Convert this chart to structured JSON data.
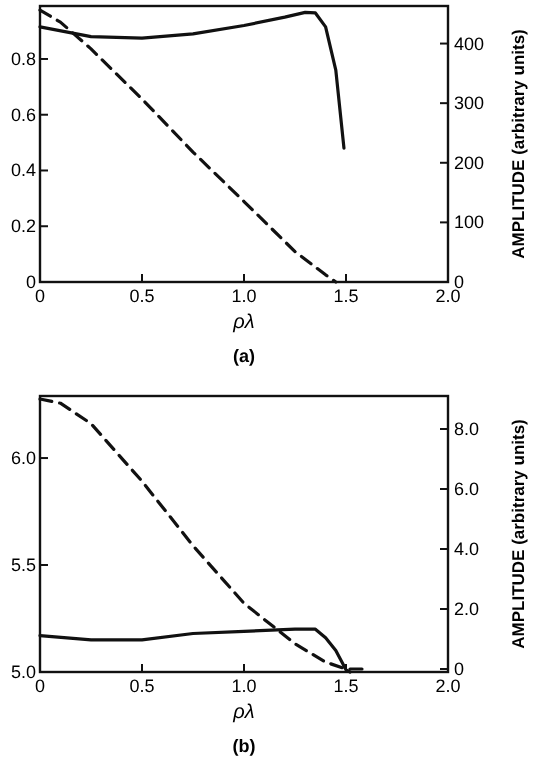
{
  "chart_data": [
    {
      "type": "line",
      "xlabel": "ρλ",
      "y2label": "AMPLITUDE (arbitrary units)",
      "annotations": [
        "(a)"
      ],
      "xlim": [
        0,
        2.0
      ],
      "xticks": [
        0,
        {
          "value": 0.5,
          "label": "0.5"
        },
        {
          "value": 1,
          "label": "1.0"
        },
        {
          "value": 1.5,
          "label": "1.5"
        },
        {
          "value": 2,
          "label": "2.0"
        }
      ],
      "ylim": [
        0,
        0.99
      ],
      "yticks": [
        0,
        {
          "value": 0.2,
          "label": "0.2"
        },
        {
          "value": 0.4,
          "label": "0.4"
        },
        {
          "value": 0.6,
          "label": "0.6"
        },
        {
          "value": 0.8,
          "label": "0.8"
        }
      ],
      "y2lim": [
        0,
        463
      ],
      "y2ticks": [
        0,
        100,
        200,
        300,
        400
      ],
      "series": [
        {
          "color": "#111111",
          "line_style": "solid",
          "x": [
            0,
            0.25,
            0.5,
            0.75,
            1.0,
            1.2,
            1.3,
            1.35,
            1.4,
            1.45,
            1.49
          ],
          "values": [
            0.915,
            0.88,
            0.875,
            0.89,
            0.92,
            0.95,
            0.967,
            0.965,
            0.915,
            0.76,
            0.48
          ]
        },
        {
          "color": "#111111",
          "line_style": "dashed",
          "axis": "y2",
          "x": [
            0,
            0.1,
            0.25,
            0.5,
            0.75,
            1.0,
            1.25,
            1.4,
            1.45
          ],
          "values": [
            456,
            436,
            391,
            307,
            218,
            135,
            51,
            12,
            0
          ]
        }
      ]
    },
    {
      "type": "line",
      "xlabel": "ρλ",
      "y2label": "AMPLITUDE (arbitrary units)",
      "annotations": [
        "(b)"
      ],
      "xlim": [
        0,
        2.0
      ],
      "xticks": [
        0,
        {
          "value": 0.5,
          "label": "0.5"
        },
        {
          "value": 1,
          "label": "1.0"
        },
        {
          "value": 1.5,
          "label": "1.5"
        },
        {
          "value": 2,
          "label": "2.0"
        }
      ],
      "ylim": [
        5.0,
        6.29
      ],
      "yticks": [
        {
          "value": 5,
          "label": "5.0"
        },
        5.5,
        {
          "value": 6,
          "label": "6.0"
        }
      ],
      "y2lim": [
        -0.1,
        9.1
      ],
      "y2ticks": [
        0,
        {
          "value": 2,
          "label": "2.0"
        },
        {
          "value": 4,
          "label": "4.0"
        },
        {
          "value": 6,
          "label": "6.0"
        },
        {
          "value": 8,
          "label": "8.0"
        }
      ],
      "series": [
        {
          "color": "#111111",
          "line_style": "solid",
          "x": [
            0,
            0.25,
            0.5,
            0.75,
            1.0,
            1.25,
            1.35,
            1.4,
            1.45,
            1.5,
            1.52
          ],
          "values": [
            5.17,
            5.15,
            5.15,
            5.18,
            5.19,
            5.2,
            5.2,
            5.16,
            5.1,
            5.01,
            5.0
          ]
        },
        {
          "color": "#111111",
          "line_style": "dashed",
          "axis": "y2",
          "x": [
            0,
            0.1,
            0.25,
            0.5,
            0.75,
            1.0,
            1.25,
            1.4,
            1.5,
            1.6
          ],
          "values": [
            9.0,
            8.86,
            8.18,
            6.26,
            4.11,
            2.19,
            0.84,
            0.23,
            0,
            0
          ]
        }
      ]
    }
  ]
}
